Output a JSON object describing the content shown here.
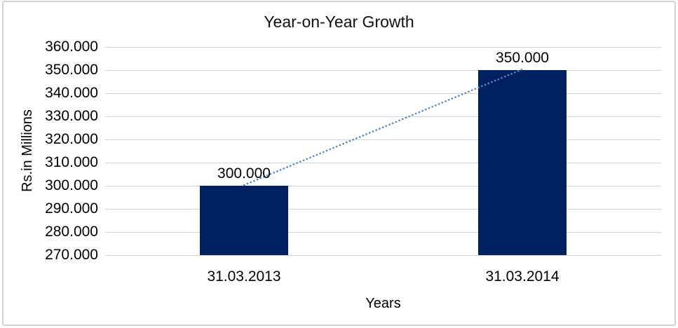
{
  "chart_data": {
    "type": "bar",
    "title": "Year-on-Year Growth",
    "xlabel": "Years",
    "ylabel": "Rs.in Millions",
    "categories": [
      "31.03.2013",
      "31.03.2014"
    ],
    "values": [
      300000,
      350000
    ],
    "value_labels": [
      "300.000",
      "350.000"
    ],
    "ylim": [
      270000,
      360000
    ],
    "ytick_step": 10000,
    "ytick_labels": [
      "360.000",
      "350.000",
      "340.000",
      "330.000",
      "320.000",
      "310.000",
      "300.000",
      "290.000",
      "280.000",
      "270.000"
    ],
    "grid": true,
    "legend": "none",
    "trendline": {
      "present": true,
      "style": "dotted",
      "from_value": 300000,
      "to_value": 350000
    },
    "colors": {
      "bar": "#002060",
      "trendline": "#4e8ac8",
      "gridline": "#d4d4d4",
      "frame_border": "#d2d2d2",
      "text": "#000000",
      "background": "#ffffff"
    }
  }
}
